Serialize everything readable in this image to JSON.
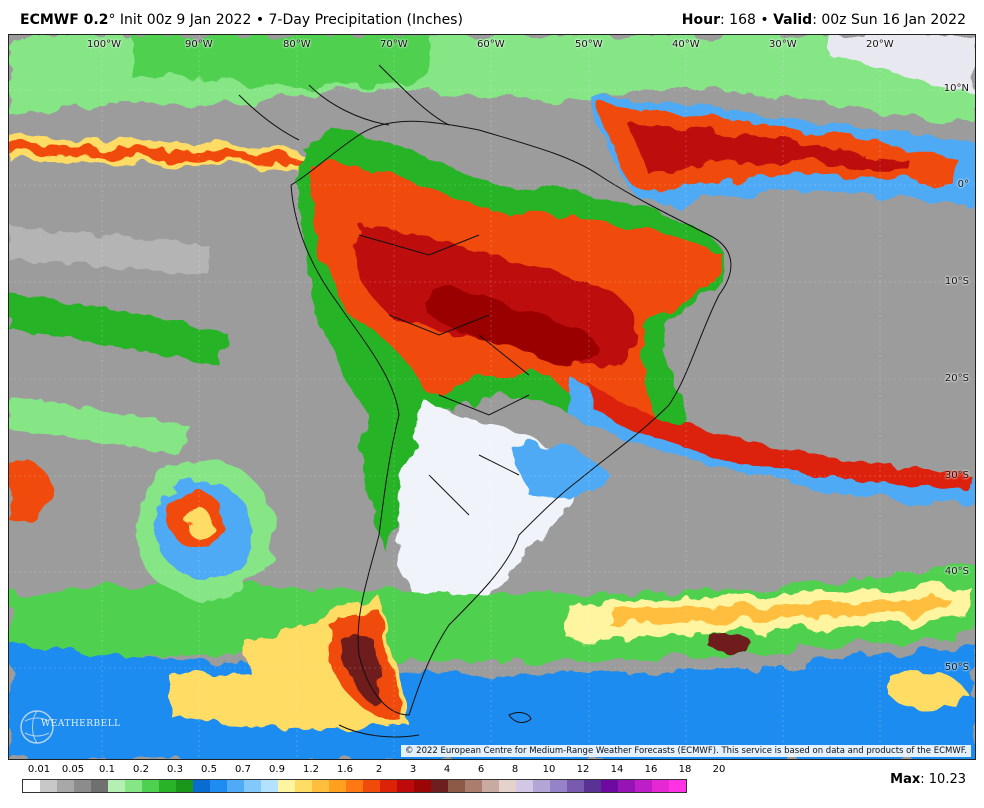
{
  "header": {
    "model": "ECMWF 0.2",
    "degree": "°",
    "init": " Init 00z 9 Jan 2022 • 7-Day Precipitation (Inches)",
    "hour_label": "Hour",
    "hour_value": ": 168 • ",
    "valid_label": "Valid",
    "valid_value": ": 00z Sun 16 Jan 2022"
  },
  "map": {
    "longitude_labels": [
      "100°W",
      "90°W",
      "80°W",
      "70°W",
      "60°W",
      "50°W",
      "40°W",
      "30°W",
      "20°W"
    ],
    "latitude_labels": [
      "10°N",
      "0°",
      "10°S",
      "20°S",
      "30°S",
      "40°S",
      "50°S"
    ],
    "logo_text": "WEATHERBELL",
    "copyright": "© 2022 European Centre for Medium-Range Weather Forecasts (ECMWF). This service is based on data and products of the ECMWF."
  },
  "legend": {
    "labels": [
      "0.01",
      "0.05",
      "0.1",
      "0.2",
      "0.3",
      "0.5",
      "0.7",
      "0.9",
      "1.2",
      "1.6",
      "2",
      "3",
      "4",
      "6",
      "8",
      "10",
      "12",
      "14",
      "16",
      "18",
      "20"
    ],
    "colors": [
      "#ffffff",
      "#c8c8c8",
      "#a8a8a8",
      "#8c8c8c",
      "#707070",
      "#b4f0b4",
      "#86e686",
      "#50d050",
      "#28b428",
      "#1a961a",
      "#0a6cd0",
      "#1e8cf0",
      "#50aaf5",
      "#82c8fa",
      "#b4e1fc",
      "#fff5a0",
      "#ffdc64",
      "#ffbe3c",
      "#ffa01e",
      "#ff7814",
      "#f04b0a",
      "#dc2308",
      "#be0a0a",
      "#9b0505",
      "#6e1e1e",
      "#8c5a46",
      "#aa7d6e",
      "#c8aaa0",
      "#e6d2cd",
      "#d2c8e6",
      "#b4a5d7",
      "#9682c8",
      "#785aaf",
      "#5a3296",
      "#6e0aa0",
      "#9614b4",
      "#be1ec8",
      "#e628d2",
      "#ff32e6"
    ]
  },
  "max": {
    "label": "Max",
    "value": ": 10.23"
  }
}
